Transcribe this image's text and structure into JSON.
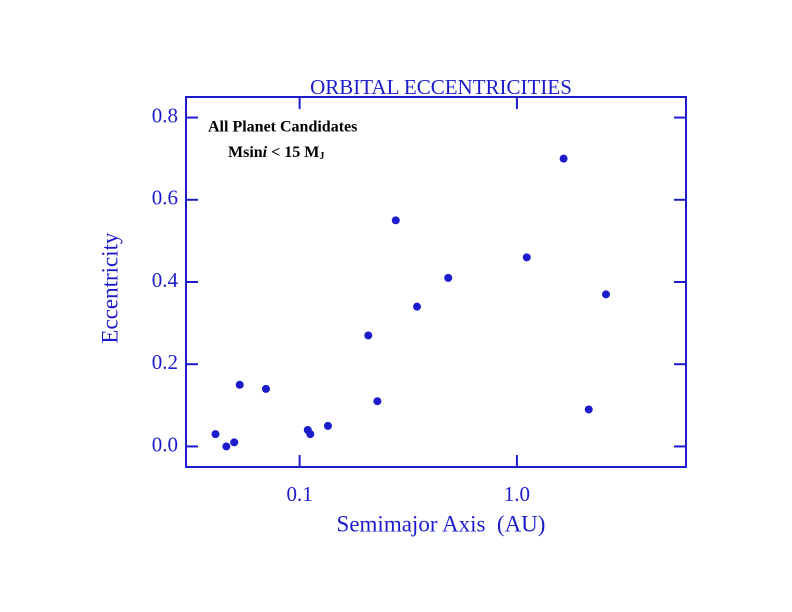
{
  "chart_data": {
    "type": "scatter",
    "title": "ORBITAL ECCENTRICITIES",
    "xlabel": "Semimajor Axis  (AU)",
    "ylabel": "Eccentricity",
    "annotations": [
      "All Planet Candidates",
      [
        "Msin",
        "i",
        " < 15 M",
        "J"
      ]
    ],
    "xscale": "log",
    "color": "#1c1ccc",
    "xlim": [
      0.03,
      6
    ],
    "ylim": [
      -0.05,
      0.85
    ],
    "xticks": [
      0.1,
      {
        "value": 1,
        "label": "1.0"
      }
    ],
    "yticks": [
      {
        "value": 0,
        "label": "0.0"
      },
      0.2,
      0.4,
      0.6,
      0.8
    ],
    "x": [
      0.041,
      0.046,
      0.05,
      0.053,
      0.07,
      0.109,
      0.112,
      0.135,
      0.207,
      0.228,
      0.277,
      0.347,
      0.483,
      1.11,
      1.64,
      2.14,
      2.57
    ],
    "values": [
      0.03,
      0.0,
      0.01,
      0.15,
      0.14,
      0.04,
      0.03,
      0.05,
      0.27,
      0.11,
      0.55,
      0.34,
      0.41,
      0.46,
      0.7,
      0.09,
      0.37
    ]
  }
}
